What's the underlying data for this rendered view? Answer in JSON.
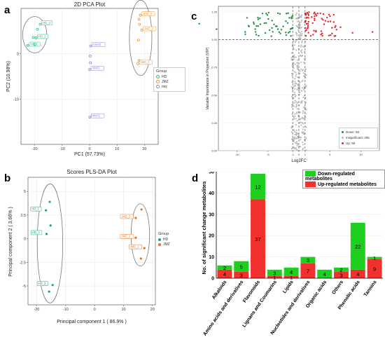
{
  "panel_labels": {
    "a": "a",
    "b": "b",
    "c": "c",
    "d": "d"
  },
  "pca": {
    "title": "2D PCA Plot",
    "xlabel": "PC1 (57.73%)",
    "ylabel": "PC2 (10.98%)",
    "legend_title": "Group",
    "legend": [
      {
        "name": "HD",
        "color": "#1dbf7b"
      },
      {
        "name": "JMZ",
        "color": "#f0922e"
      },
      {
        "name": "mix",
        "color": "#8b86c9"
      }
    ]
  },
  "plsda": {
    "title": "Scores PLS-DA Plot",
    "xlabel": "Principal component 1 ( 86.9% )",
    "ylabel": "Principal component 2 ( 3.66% )",
    "legend_title": "Group",
    "legend": [
      {
        "name": "HD",
        "color": "#1aa47a"
      },
      {
        "name": "JMZ",
        "color": "#e8731e"
      }
    ]
  },
  "volcano": {
    "xlabel": "Log2FC",
    "ylabel": "Variable Importance in Projection (VIP)",
    "legend": [
      {
        "name": "Down: 58",
        "color": "#1d8f3a"
      },
      {
        "name": "Insignificant: 306",
        "color": "#bbbbbb"
      },
      {
        "name": "Up: 69",
        "color": "#e0252a"
      }
    ]
  },
  "chart_data": [
    {
      "type": "scatter",
      "title": "2D PCA Plot",
      "xlabel": "PC1 (57.73%)",
      "ylabel": "PC2 (10.98%)",
      "xlim": [
        -25,
        25
      ],
      "ylim": [
        -20,
        10
      ],
      "xticks": [
        -20,
        -10,
        0,
        10,
        20
      ],
      "yticks": [
        -10,
        0
      ],
      "series": [
        {
          "name": "HD",
          "color": "#1dbf7b",
          "points": [
            {
              "x": -18,
              "y": 6.5,
              "label": "HD_3"
            },
            {
              "x": -19,
              "y": 5.4,
              "label": ""
            },
            {
              "x": -19.5,
              "y": 3.5,
              "label": "HD_2"
            },
            {
              "x": -20.5,
              "y": 3.6,
              "label": ""
            },
            {
              "x": -22.5,
              "y": 1.8,
              "label": "HD_1"
            },
            {
              "x": -20,
              "y": 2.1,
              "label": ""
            }
          ]
        },
        {
          "name": "JMZ",
          "color": "#f0922e",
          "points": [
            {
              "x": 18.5,
              "y": 8.5,
              "label": "JMZ_3"
            },
            {
              "x": 18,
              "y": 7.6,
              "label": ""
            },
            {
              "x": 18.2,
              "y": 6.5,
              "label": ""
            },
            {
              "x": 19,
              "y": 5.2,
              "label": "JMZ_2"
            },
            {
              "x": 17.8,
              "y": 3,
              "label": ""
            },
            {
              "x": 17.6,
              "y": -2.2,
              "label": "JMZ_1"
            },
            {
              "x": 18,
              "y": -1.5,
              "label": ""
            }
          ]
        },
        {
          "name": "mix",
          "color": "#8b86c9",
          "points": [
            {
              "x": 0.4,
              "y": 1.7,
              "label": "mix03"
            },
            {
              "x": 0.2,
              "y": -0.5,
              "label": ""
            },
            {
              "x": 0.3,
              "y": -2,
              "label": ""
            },
            {
              "x": 0,
              "y": -3.5,
              "label": "mix02"
            },
            {
              "x": 0.1,
              "y": -14,
              "label": "mix01"
            }
          ]
        }
      ],
      "ellipses": [
        {
          "group": "HD",
          "cx": -20,
          "cy": 4.2,
          "rx": 4.4,
          "ry": 4
        },
        {
          "group": "JMZ",
          "cx": 18.6,
          "cy": 3.5,
          "rx": 4.1,
          "ry": 8.3
        }
      ]
    },
    {
      "type": "scatter",
      "title": "Scores PLS-DA Plot",
      "xlabel": "Principal component 1 ( 86.9% )",
      "ylabel": "Principal component 2 ( 3.66% )",
      "xlim": [
        -23,
        21
      ],
      "ylim": [
        -7,
        6.5
      ],
      "xticks": [
        -20,
        -10,
        0,
        10,
        20
      ],
      "yticks": [
        -5,
        -2.5,
        0,
        2.5,
        5
      ],
      "series": [
        {
          "name": "HD",
          "color": "#1aa47a",
          "points": [
            {
              "x": -15.5,
              "y": 3.9,
              "label": ""
            },
            {
              "x": -16.8,
              "y": 3,
              "label": "HD_1"
            },
            {
              "x": -15.2,
              "y": 1.4,
              "label": ""
            },
            {
              "x": -16.6,
              "y": 0.5,
              "label": "HD_3"
            },
            {
              "x": -15.7,
              "y": -5.6,
              "label": ""
            },
            {
              "x": -14.5,
              "y": -4.9,
              "label": "HD_2"
            }
          ]
        },
        {
          "name": "JMZ",
          "color": "#e8731e",
          "points": [
            {
              "x": 16.2,
              "y": 3.1,
              "label": ""
            },
            {
              "x": 14.2,
              "y": 2.2,
              "label": "JMZ_3"
            },
            {
              "x": 14.2,
              "y": 0.1,
              "label": "JMZ_2"
            },
            {
              "x": 15.8,
              "y": -0.8,
              "label": ""
            },
            {
              "x": 17.2,
              "y": -1,
              "label": "JMZ_1"
            },
            {
              "x": 16,
              "y": -2.1,
              "label": ""
            }
          ]
        }
      ],
      "ellipses": [
        {
          "group": "HD",
          "cx": -15.4,
          "cy": -0.5,
          "rx": 4.4,
          "ry": 6.3
        },
        {
          "group": "JMZ",
          "cx": 15.8,
          "cy": 0.4,
          "rx": 3.2,
          "ry": 3.3
        }
      ]
    },
    {
      "type": "scatter",
      "title": "",
      "xlabel": "Log2FC",
      "ylabel": "Variable Importance in Projection (VIP)",
      "xlim": [
        -13,
        13
      ],
      "ylim": [
        0,
        1.3
      ],
      "xticks": [
        -10,
        -5,
        -1,
        0,
        1,
        5,
        10
      ],
      "yticks": [
        0,
        0.25,
        0.5,
        0.75,
        1,
        1.25
      ],
      "hlines": [
        1
      ],
      "vlines": [
        -1,
        0,
        1
      ],
      "series": [
        {
          "name": "Down: 58",
          "color": "#1d8f3a",
          "count": 58
        },
        {
          "name": "Insignificant: 306",
          "color": "#bbbbbb",
          "count": 306
        },
        {
          "name": "Up: 69",
          "color": "#e0252a",
          "count": 69
        }
      ]
    },
    {
      "type": "bar",
      "stacked": true,
      "title": "",
      "xlabel": "",
      "ylabel": "No. of significant change metabolites",
      "ylim": [
        0,
        50
      ],
      "yticks": [
        0,
        10,
        20,
        30,
        40,
        50
      ],
      "categories": [
        "Alkaloids",
        "Amino acids and derivatives",
        "Flavonoids",
        "Lignans and Coumarins",
        "Lipids",
        "Nucleotides and derivatives",
        "Organic acids",
        "Others",
        "Phenolic acids",
        "Tannins"
      ],
      "series": [
        {
          "name": "Up-regulated metabolites",
          "color": "#f2312f",
          "values": [
            4,
            3,
            37,
            1,
            1,
            7,
            0,
            3,
            4,
            9
          ]
        },
        {
          "name": "Down-regulated metabolites",
          "color": "#1fcf1f",
          "values": [
            2,
            5,
            12,
            3,
            4,
            3,
            4,
            2,
            22,
            1
          ]
        }
      ],
      "legend_order": [
        "Down-regulated metabolites",
        "Up-regulated metabolites"
      ],
      "legend_position": "top-right",
      "grid": true
    }
  ]
}
